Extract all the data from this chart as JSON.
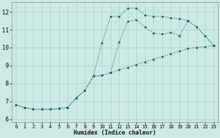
{
  "background_color": "#cce9e5",
  "grid_color": "#aad5d0",
  "line_color": "#1a6b5e",
  "xlabel": "Humidex (Indice chaleur)",
  "xlim": [
    -0.5,
    23.5
  ],
  "ylim": [
    5.85,
    12.55
  ],
  "xticks": [
    0,
    1,
    2,
    3,
    4,
    5,
    6,
    7,
    8,
    9,
    10,
    11,
    12,
    13,
    14,
    15,
    16,
    17,
    18,
    19,
    20,
    21,
    22,
    23
  ],
  "yticks": [
    6,
    7,
    8,
    9,
    10,
    11,
    12
  ],
  "curve1_x": [
    0,
    1,
    2,
    3,
    4,
    5,
    6,
    7,
    8,
    9,
    10,
    11,
    12,
    13,
    14,
    15,
    16,
    17,
    18,
    19,
    20,
    21,
    22,
    23
  ],
  "curve1_y": [
    6.8,
    6.65,
    6.55,
    6.55,
    6.55,
    6.6,
    6.65,
    7.2,
    7.6,
    8.4,
    10.25,
    11.75,
    11.75,
    12.2,
    12.2,
    11.8,
    11.75,
    11.75,
    11.65,
    11.6,
    11.5,
    11.15,
    10.65,
    10.1
  ],
  "curve2_x": [
    0,
    1,
    2,
    3,
    4,
    5,
    6,
    7,
    8,
    9,
    10,
    11,
    12,
    13,
    14,
    15,
    16,
    17,
    18,
    19,
    20,
    21,
    22,
    23
  ],
  "curve2_y": [
    6.8,
    6.65,
    6.55,
    6.55,
    6.55,
    6.6,
    6.65,
    7.2,
    7.6,
    8.4,
    8.45,
    8.6,
    10.3,
    11.45,
    11.55,
    11.15,
    10.8,
    10.75,
    10.85,
    10.65,
    11.5,
    11.15,
    10.65,
    10.1
  ],
  "curve3_x": [
    0,
    1,
    2,
    3,
    4,
    5,
    6,
    7,
    8,
    9,
    10,
    11,
    12,
    13,
    14,
    15,
    16,
    17,
    18,
    19,
    20,
    21,
    22,
    23
  ],
  "curve3_y": [
    6.8,
    6.65,
    6.55,
    6.55,
    6.55,
    6.6,
    6.65,
    7.2,
    7.6,
    8.4,
    8.45,
    8.6,
    8.75,
    8.9,
    9.05,
    9.2,
    9.35,
    9.5,
    9.65,
    9.8,
    9.95,
    10.0,
    10.05,
    10.1
  ]
}
